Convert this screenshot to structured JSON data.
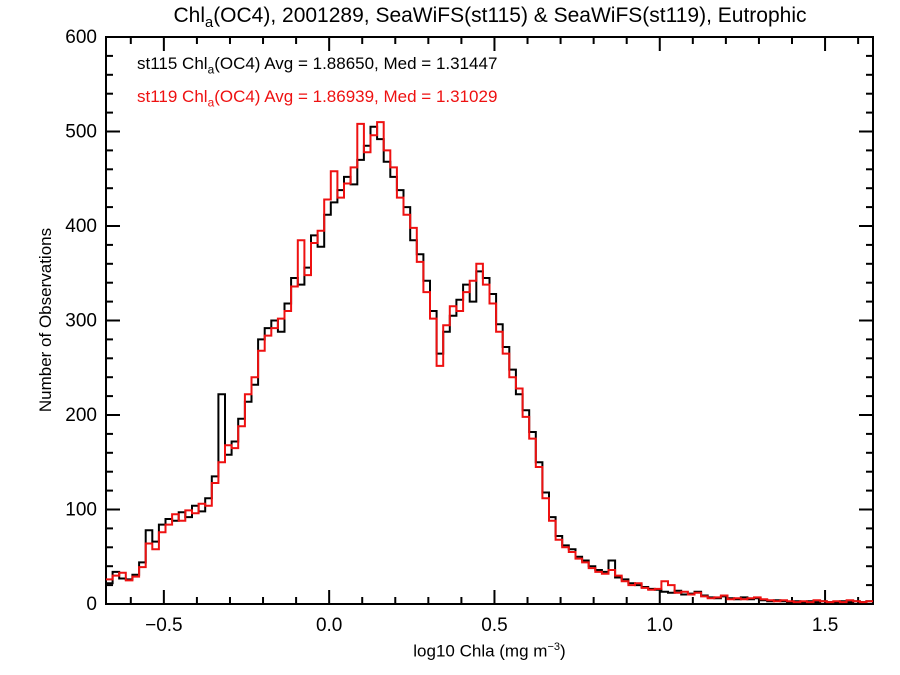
{
  "title": {
    "prefix": "Chl",
    "sub": "a",
    "rest": "(OC4), 2001289, SeaWiFS(st115) & SeaWiFS(st119), Eutrophic"
  },
  "legend": [
    {
      "prefix": "st115 Chl",
      "sub": "a",
      "rest": "(OC4) Avg = 1.88650, Med = 1.31447",
      "color": "#000000"
    },
    {
      "prefix": "st119 Chl",
      "sub": "a",
      "rest": "(OC4) Avg = 1.86939, Med = 1.31029",
      "color": "#ee1111"
    }
  ],
  "xlabel": {
    "prefix": "log10 Chla (mg m",
    "sup": "−3",
    "suffix": ")"
  },
  "ylabel": "Number of Observations",
  "chart_data": {
    "type": "line",
    "subtype": "step-histogram",
    "title": "Chla(OC4), 2001289, SeaWiFS(st115) & SeaWiFS(st119), Eutrophic",
    "xlabel": "log10 Chla (mg m-3)",
    "ylabel": "Number of Observations",
    "xlim": [
      -0.675,
      1.645
    ],
    "ylim": [
      0,
      600
    ],
    "x_major_ticks": [
      -0.5,
      0.0,
      0.5,
      1.0,
      1.5
    ],
    "x_tick_labels": [
      "−0.5",
      "0.0",
      "0.5",
      "1.0",
      "1.5"
    ],
    "x_minor_step": 0.1,
    "y_major_ticks": [
      0,
      100,
      200,
      300,
      400,
      500,
      600
    ],
    "y_tick_labels": [
      "0",
      "100",
      "200",
      "300",
      "400",
      "500",
      "600"
    ],
    "y_minor_step": 20,
    "grid": false,
    "legend_position": "top-left-inside-as-colored-text",
    "bin_start": -0.675,
    "bin_width": 0.02,
    "stats": [
      {
        "name": "st115",
        "avg": "1.88650",
        "med": "1.31447"
      },
      {
        "name": "st119",
        "avg": "1.86939",
        "med": "1.31029"
      }
    ],
    "series": [
      {
        "name": "st115 Chla(OC4)",
        "color": "#000000",
        "values": [
          22,
          34,
          27,
          26,
          31,
          44,
          78,
          66,
          84,
          90,
          88,
          97,
          92,
          104,
          98,
          112,
          135,
          222,
          158,
          172,
          196,
          214,
          232,
          280,
          292,
          300,
          288,
          318,
          345,
          338,
          356,
          390,
          378,
          412,
          425,
          438,
          452,
          444,
          470,
          485,
          505,
          492,
          468,
          452,
          438,
          420,
          385,
          370,
          342,
          310,
          265,
          288,
          305,
          322,
          338,
          320,
          352,
          345,
          328,
          296,
          272,
          248,
          222,
          205,
          182,
          150,
          118,
          92,
          72,
          62,
          58,
          50,
          46,
          40,
          36,
          34,
          46,
          28,
          26,
          22,
          20,
          18,
          16,
          15,
          13,
          12,
          14,
          10,
          11,
          13,
          9,
          7,
          6,
          8,
          6,
          5,
          7,
          5,
          6,
          4,
          3,
          4,
          3,
          2,
          3,
          2,
          3,
          2,
          3,
          2,
          2,
          3,
          2,
          3,
          2,
          3
        ]
      },
      {
        "name": "st119 Chla(OC4)",
        "color": "#ee1111",
        "values": [
          26,
          30,
          33,
          25,
          29,
          39,
          64,
          58,
          76,
          84,
          95,
          88,
          99,
          96,
          106,
          104,
          128,
          150,
          168,
          165,
          188,
          222,
          240,
          268,
          284,
          292,
          302,
          310,
          336,
          385,
          348,
          382,
          395,
          428,
          458,
          430,
          445,
          462,
          508,
          478,
          496,
          510,
          480,
          462,
          430,
          412,
          398,
          362,
          330,
          302,
          252,
          295,
          315,
          310,
          330,
          342,
          360,
          338,
          318,
          288,
          265,
          240,
          228,
          198,
          175,
          145,
          112,
          88,
          68,
          60,
          55,
          48,
          44,
          38,
          34,
          32,
          36,
          30,
          24,
          20,
          22,
          17,
          15,
          16,
          24,
          20,
          12,
          13,
          10,
          12,
          8,
          6,
          7,
          9,
          5,
          6,
          5,
          6,
          7,
          5,
          4,
          3,
          4,
          3,
          2,
          3,
          2,
          4,
          3,
          2,
          3,
          2,
          4,
          3,
          2,
          3
        ]
      }
    ]
  }
}
